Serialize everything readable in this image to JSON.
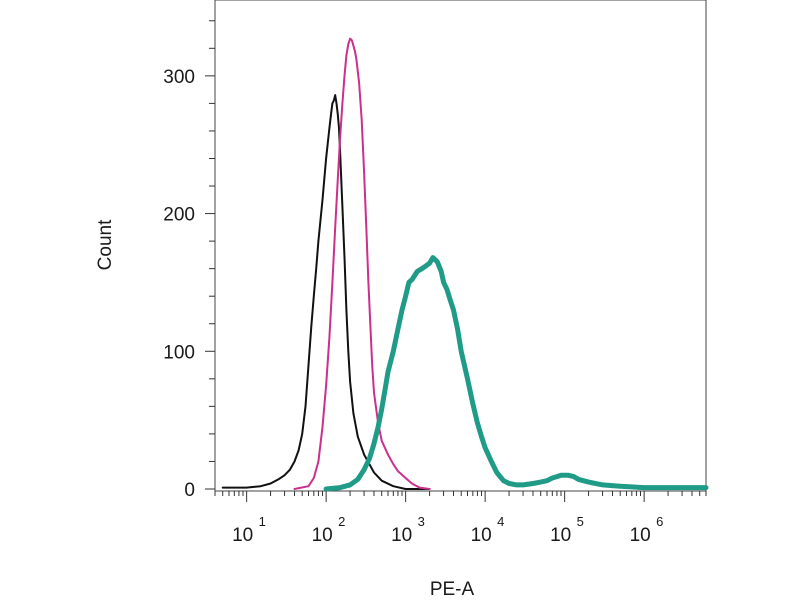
{
  "chart_data": {
    "type": "line",
    "title": "",
    "xlabel": "PE-A",
    "ylabel": "Count",
    "xscale": "log",
    "xlim": [
      4,
      6000000
    ],
    "ylim": [
      0,
      350
    ],
    "grid": false,
    "legend": "none",
    "yticks": [
      {
        "value": 0,
        "label": "0"
      },
      {
        "value": 100,
        "label": "100"
      },
      {
        "value": 200,
        "label": "200"
      },
      {
        "value": 300,
        "label": "300"
      }
    ],
    "xticks": [
      {
        "value": 10,
        "base": "10",
        "exp": "1"
      },
      {
        "value": 100,
        "base": "10",
        "exp": "2"
      },
      {
        "value": 1000,
        "base": "10",
        "exp": "3"
      },
      {
        "value": 10000,
        "base": "10",
        "exp": "4"
      },
      {
        "value": 100000,
        "base": "10",
        "exp": "5"
      },
      {
        "value": 1000000,
        "base": "10",
        "exp": "6"
      }
    ],
    "series": [
      {
        "color": "#111111",
        "points": [
          [
            5,
            1
          ],
          [
            10,
            1
          ],
          [
            15,
            2
          ],
          [
            20,
            4
          ],
          [
            25,
            7
          ],
          [
            30,
            10
          ],
          [
            35,
            14
          ],
          [
            40,
            20
          ],
          [
            45,
            28
          ],
          [
            50,
            40
          ],
          [
            55,
            60
          ],
          [
            60,
            90
          ],
          [
            65,
            118
          ],
          [
            70,
            140
          ],
          [
            75,
            160
          ],
          [
            80,
            180
          ],
          [
            90,
            210
          ],
          [
            100,
            240
          ],
          [
            110,
            262
          ],
          [
            115,
            272
          ],
          [
            120,
            280
          ],
          [
            125,
            282
          ],
          [
            130,
            286
          ],
          [
            135,
            280
          ],
          [
            140,
            272
          ],
          [
            145,
            262
          ],
          [
            150,
            245
          ],
          [
            160,
            205
          ],
          [
            170,
            168
          ],
          [
            180,
            130
          ],
          [
            190,
            100
          ],
          [
            200,
            78
          ],
          [
            220,
            55
          ],
          [
            250,
            38
          ],
          [
            300,
            25
          ],
          [
            350,
            18
          ],
          [
            400,
            12
          ],
          [
            500,
            6
          ],
          [
            700,
            2
          ],
          [
            1000,
            0
          ],
          [
            2000,
            0
          ]
        ]
      },
      {
        "color": "#cc2f8c",
        "points": [
          [
            40,
            0
          ],
          [
            60,
            2
          ],
          [
            70,
            8
          ],
          [
            80,
            20
          ],
          [
            90,
            45
          ],
          [
            100,
            75
          ],
          [
            110,
            110
          ],
          [
            120,
            150
          ],
          [
            130,
            190
          ],
          [
            140,
            225
          ],
          [
            150,
            255
          ],
          [
            160,
            280
          ],
          [
            170,
            300
          ],
          [
            180,
            315
          ],
          [
            190,
            323
          ],
          [
            200,
            327
          ],
          [
            210,
            326
          ],
          [
            220,
            322
          ],
          [
            230,
            318
          ],
          [
            240,
            312
          ],
          [
            260,
            295
          ],
          [
            280,
            268
          ],
          [
            300,
            230
          ],
          [
            320,
            190
          ],
          [
            340,
            150
          ],
          [
            360,
            118
          ],
          [
            380,
            90
          ],
          [
            400,
            70
          ],
          [
            450,
            48
          ],
          [
            500,
            35
          ],
          [
            600,
            25
          ],
          [
            700,
            18
          ],
          [
            800,
            13
          ],
          [
            1000,
            8
          ],
          [
            1200,
            4
          ],
          [
            1500,
            1
          ],
          [
            2000,
            0
          ]
        ]
      },
      {
        "color": "#1f9b87",
        "points": [
          [
            100,
            0
          ],
          [
            150,
            1
          ],
          [
            200,
            3
          ],
          [
            250,
            7
          ],
          [
            300,
            14
          ],
          [
            350,
            22
          ],
          [
            400,
            33
          ],
          [
            450,
            45
          ],
          [
            500,
            58
          ],
          [
            550,
            72
          ],
          [
            600,
            85
          ],
          [
            700,
            100
          ],
          [
            800,
            116
          ],
          [
            900,
            130
          ],
          [
            1000,
            140
          ],
          [
            1100,
            150
          ],
          [
            1200,
            152
          ],
          [
            1400,
            158
          ],
          [
            1600,
            160
          ],
          [
            1800,
            162
          ],
          [
            2000,
            164
          ],
          [
            2200,
            168
          ],
          [
            2500,
            165
          ],
          [
            2800,
            158
          ],
          [
            3000,
            150
          ],
          [
            3300,
            145
          ],
          [
            3600,
            138
          ],
          [
            4000,
            130
          ],
          [
            4500,
            116
          ],
          [
            5000,
            100
          ],
          [
            6000,
            80
          ],
          [
            7000,
            62
          ],
          [
            8000,
            48
          ],
          [
            9000,
            38
          ],
          [
            10000,
            30
          ],
          [
            12000,
            20
          ],
          [
            14000,
            12
          ],
          [
            17000,
            6
          ],
          [
            20000,
            4
          ],
          [
            25000,
            3
          ],
          [
            30000,
            3
          ],
          [
            40000,
            4
          ],
          [
            50000,
            5
          ],
          [
            60000,
            6
          ],
          [
            70000,
            8
          ],
          [
            80000,
            9
          ],
          [
            90000,
            10
          ],
          [
            100000,
            10
          ],
          [
            110000,
            10
          ],
          [
            130000,
            9
          ],
          [
            150000,
            7
          ],
          [
            200000,
            5
          ],
          [
            300000,
            3
          ],
          [
            500000,
            2
          ],
          [
            1000000,
            1
          ],
          [
            2000000,
            1
          ],
          [
            6000000,
            1
          ]
        ]
      }
    ]
  }
}
